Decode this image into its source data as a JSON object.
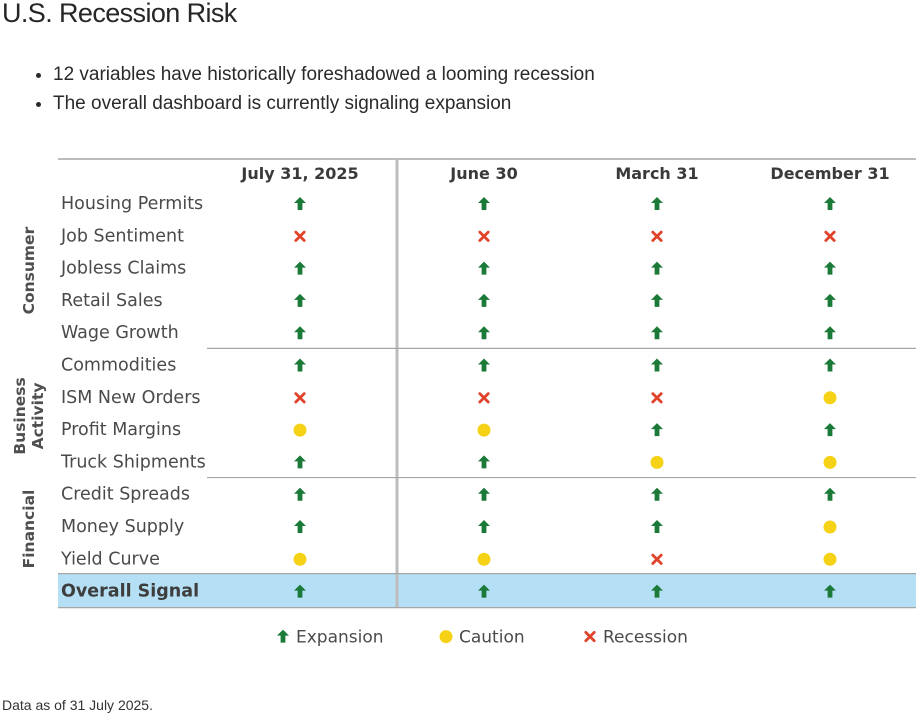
{
  "page": {
    "title": "U.S. Recession Risk",
    "bullets": [
      "12 variables have historically foreshadowed a looming recession",
      "The overall dashboard is currently signaling expansion"
    ],
    "footnote": "Data as of 31 July 2025."
  },
  "colors": {
    "expansion": "#1b7a37",
    "caution": "#f5d215",
    "recession": "#e0432b",
    "overall_row_bg": "#b5dff4",
    "divider": "#a6a6a6",
    "label_text": "#4a4a4a"
  },
  "icons": {
    "expansion": "up-arrow-icon",
    "caution": "yellow-circle-icon",
    "recession": "red-x-icon"
  },
  "chart_data": {
    "type": "table",
    "columns": [
      "July 31, 2025",
      "June 30",
      "March 31",
      "December 31"
    ],
    "groups": [
      {
        "name": "Consumer",
        "name_lines": [
          "Consumer"
        ],
        "rows": [
          {
            "label": "Housing Permits",
            "signals": [
              "expansion",
              "expansion",
              "expansion",
              "expansion"
            ]
          },
          {
            "label": "Job Sentiment",
            "signals": [
              "recession",
              "recession",
              "recession",
              "recession"
            ]
          },
          {
            "label": "Jobless Claims",
            "signals": [
              "expansion",
              "expansion",
              "expansion",
              "expansion"
            ]
          },
          {
            "label": "Retail Sales",
            "signals": [
              "expansion",
              "expansion",
              "expansion",
              "expansion"
            ]
          },
          {
            "label": "Wage Growth",
            "signals": [
              "expansion",
              "expansion",
              "expansion",
              "expansion"
            ]
          }
        ]
      },
      {
        "name": "Business Activity",
        "name_lines": [
          "Business",
          "Activity"
        ],
        "rows": [
          {
            "label": "Commodities",
            "signals": [
              "expansion",
              "expansion",
              "expansion",
              "expansion"
            ]
          },
          {
            "label": "ISM New Orders",
            "signals": [
              "recession",
              "recession",
              "recession",
              "caution"
            ]
          },
          {
            "label": "Profit Margins",
            "signals": [
              "caution",
              "caution",
              "expansion",
              "expansion"
            ]
          },
          {
            "label": "Truck Shipments",
            "signals": [
              "expansion",
              "expansion",
              "caution",
              "caution"
            ]
          }
        ]
      },
      {
        "name": "Financial",
        "name_lines": [
          "Financial"
        ],
        "rows": [
          {
            "label": "Credit Spreads",
            "signals": [
              "expansion",
              "expansion",
              "expansion",
              "expansion"
            ]
          },
          {
            "label": "Money Supply",
            "signals": [
              "expansion",
              "expansion",
              "expansion",
              "caution"
            ]
          },
          {
            "label": "Yield Curve",
            "signals": [
              "caution",
              "caution",
              "recession",
              "caution"
            ]
          }
        ]
      }
    ],
    "overall": {
      "label": "Overall Signal",
      "signals": [
        "expansion",
        "expansion",
        "expansion",
        "expansion"
      ]
    },
    "legend": [
      {
        "key": "expansion",
        "label": "Expansion"
      },
      {
        "key": "caution",
        "label": "Caution"
      },
      {
        "key": "recession",
        "label": "Recession"
      }
    ]
  }
}
